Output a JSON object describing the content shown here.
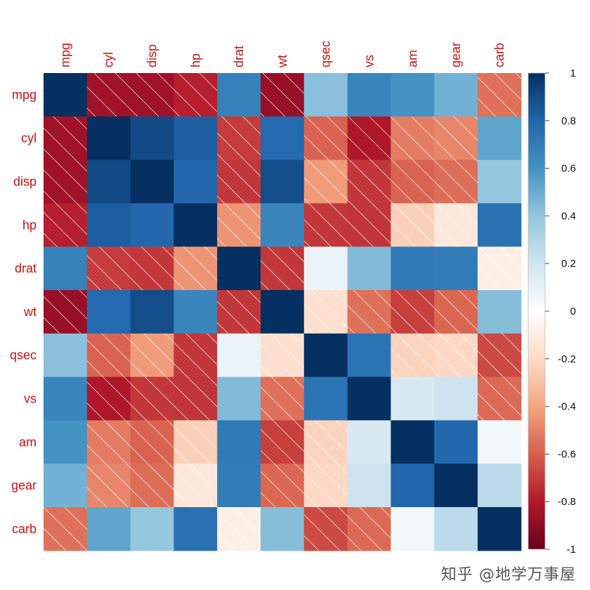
{
  "chart_data": {
    "type": "heatmap",
    "variables": [
      "mpg",
      "cyl",
      "disp",
      "hp",
      "drat",
      "wt",
      "qsec",
      "vs",
      "am",
      "gear",
      "carb"
    ],
    "matrix": [
      [
        1.0,
        -0.85,
        -0.85,
        -0.78,
        0.68,
        -0.87,
        0.42,
        0.66,
        0.6,
        0.48,
        -0.55
      ],
      [
        -0.85,
        1.0,
        0.9,
        0.83,
        -0.7,
        0.78,
        -0.59,
        -0.81,
        -0.52,
        -0.49,
        0.53
      ],
      [
        -0.85,
        0.9,
        1.0,
        0.79,
        -0.71,
        0.89,
        -0.43,
        -0.71,
        -0.59,
        -0.56,
        0.39
      ],
      [
        -0.78,
        0.83,
        0.79,
        1.0,
        -0.45,
        0.66,
        -0.71,
        -0.72,
        -0.24,
        -0.13,
        0.75
      ],
      [
        0.68,
        -0.7,
        -0.71,
        -0.45,
        1.0,
        -0.71,
        0.09,
        0.44,
        0.71,
        0.7,
        -0.09
      ],
      [
        -0.87,
        0.78,
        0.89,
        0.66,
        -0.71,
        1.0,
        -0.17,
        -0.55,
        -0.69,
        -0.58,
        0.43
      ],
      [
        0.42,
        -0.59,
        -0.43,
        -0.71,
        0.09,
        -0.17,
        1.0,
        0.74,
        -0.23,
        -0.21,
        -0.66
      ],
      [
        0.66,
        -0.81,
        -0.71,
        -0.72,
        0.44,
        -0.55,
        0.74,
        1.0,
        0.17,
        0.21,
        -0.57
      ],
      [
        0.6,
        -0.52,
        -0.59,
        -0.24,
        0.71,
        -0.69,
        -0.23,
        0.17,
        1.0,
        0.79,
        0.06
      ],
      [
        0.48,
        -0.49,
        -0.56,
        -0.13,
        0.7,
        -0.58,
        -0.21,
        0.21,
        0.79,
        1.0,
        0.27
      ],
      [
        -0.55,
        0.53,
        0.39,
        0.75,
        -0.09,
        0.43,
        -0.66,
        -0.57,
        0.06,
        0.27,
        1.0
      ]
    ],
    "colorbar": {
      "ticks": [
        "1",
        "0.8",
        "0.6",
        "0.4",
        "0.2",
        "0",
        "-0.2",
        "-0.4",
        "-0.6",
        "-0.8",
        "-1"
      ],
      "range": [
        -1,
        1
      ],
      "colors_low_to_high": [
        "#67001f",
        "#b2182b",
        "#d6604d",
        "#f4a582",
        "#fddbc7",
        "#ffffff",
        "#d1e5f0",
        "#92c5de",
        "#4393c3",
        "#2166ac",
        "#053061"
      ]
    },
    "negative_cells_hatched": true,
    "label_color": "#cc1111"
  },
  "watermark": "知乎 @地学万事屋"
}
